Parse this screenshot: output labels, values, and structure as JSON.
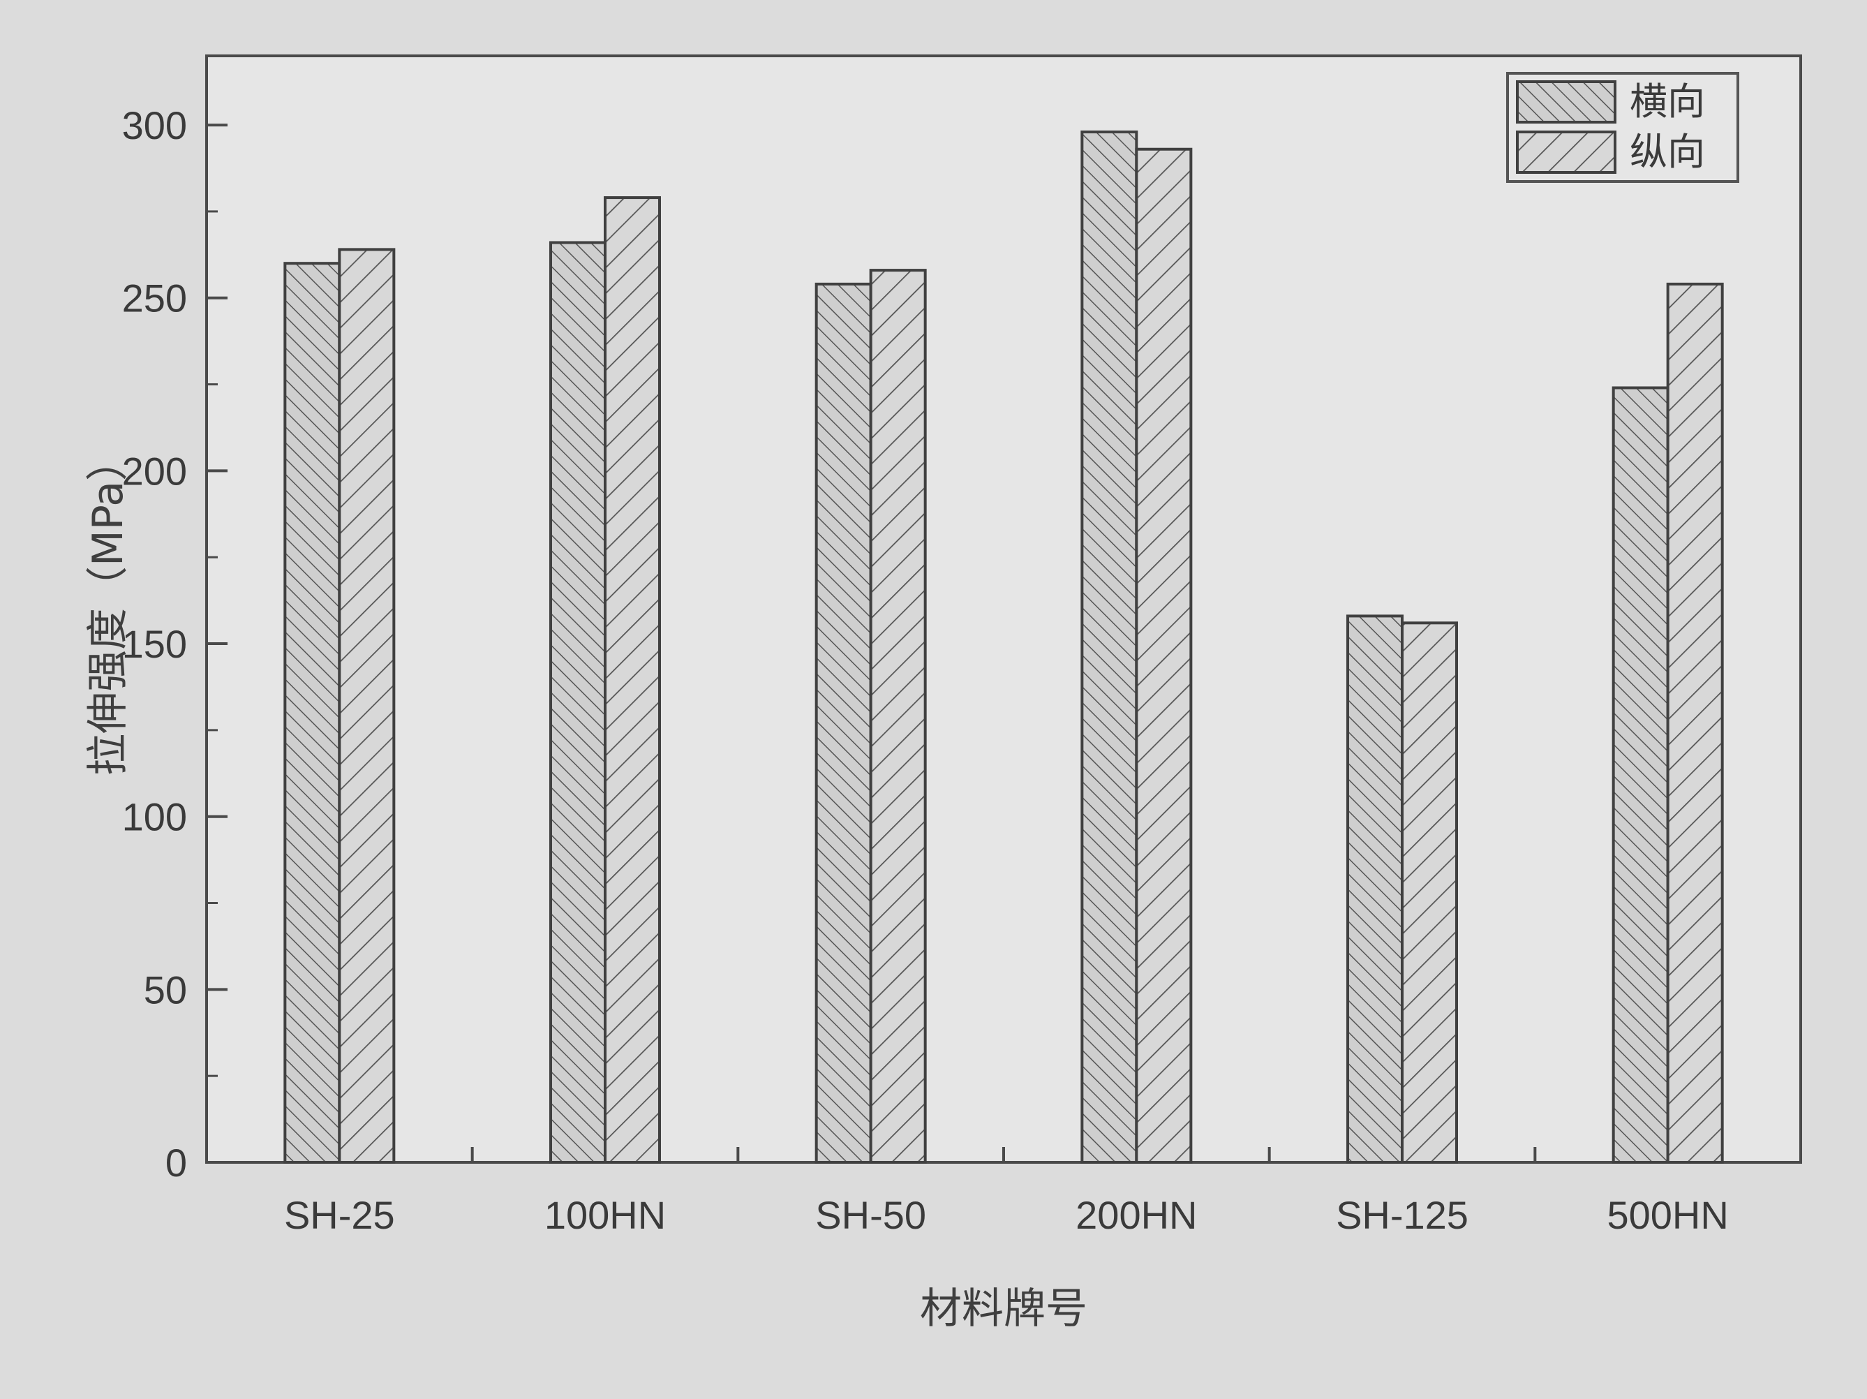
{
  "chart_data": {
    "type": "bar",
    "categories": [
      "SH-25",
      "100HN",
      "SH-50",
      "200HN",
      "SH-125",
      "500HN"
    ],
    "series": [
      {
        "name": "横向",
        "values": [
          260,
          266,
          254,
          298,
          158,
          224
        ],
        "pattern": "dense-diagonal"
      },
      {
        "name": "纵向",
        "values": [
          264,
          279,
          258,
          293,
          156,
          254
        ],
        "pattern": "sparse-backslash"
      }
    ],
    "xlabel": "材料牌号",
    "ylabel": "拉伸强度（MPa）",
    "ylim": [
      0,
      320
    ],
    "yticks": [
      0,
      50,
      100,
      150,
      200,
      250,
      300
    ],
    "grid": false,
    "legend_position": "top-right",
    "colors": {
      "background": "#dcdcdc",
      "plot_bg": "#e6e6e6",
      "bar_fill": "#cfcfcf",
      "stroke": "#4a4a4a"
    }
  }
}
